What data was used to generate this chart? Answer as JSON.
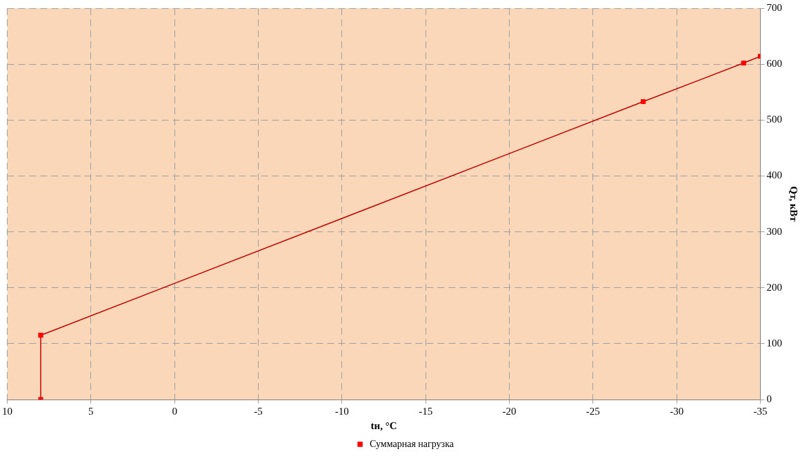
{
  "chart_data": {
    "type": "line",
    "xlabel": "tн, °C",
    "ylabel": "Qт, кВт",
    "series": [
      {
        "name": "Суммарная нагрузка",
        "color": "#c00000",
        "x": [
          8,
          8,
          -28,
          -34,
          -35
        ],
        "values": [
          0,
          115,
          533,
          602,
          614
        ]
      }
    ],
    "xlim": [
      10,
      -35
    ],
    "xticks": [
      10,
      5,
      0,
      -5,
      -10,
      -15,
      -20,
      -25,
      -30,
      -35
    ],
    "ylim": [
      0,
      700
    ],
    "yticks": [
      0,
      100,
      200,
      300,
      400,
      500,
      600,
      700
    ],
    "grid": true,
    "legend": "bottom",
    "marker": "square",
    "line_style": "solid"
  }
}
